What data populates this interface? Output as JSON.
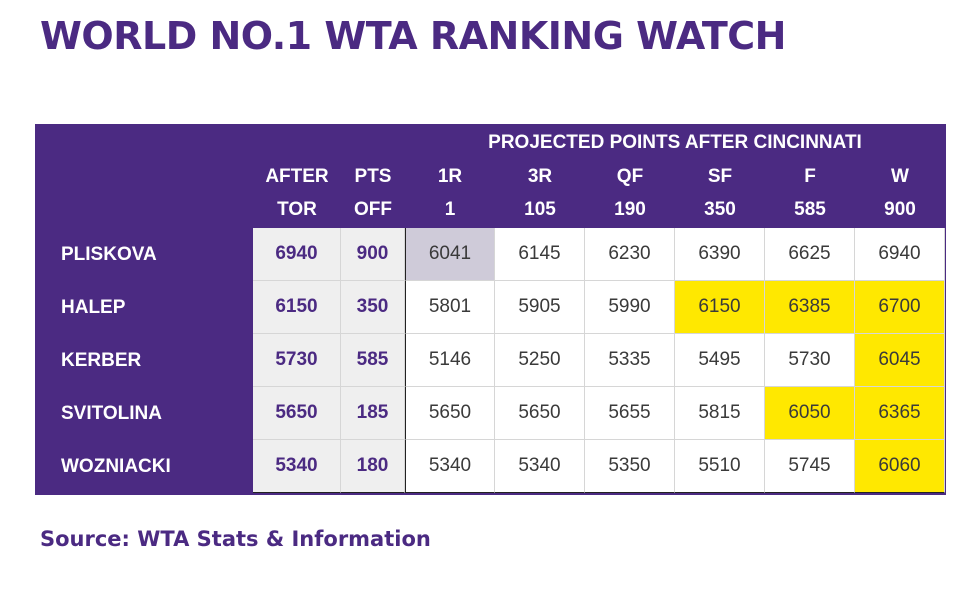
{
  "title": "WORLD NO.1 WTA RANKING WATCH",
  "source": "Source: WTA Stats & Information",
  "colors": {
    "purple": "#4b2a82",
    "highlight_yellow": "#ffe800",
    "highlight_grey": "#cfcbd9",
    "static_col_bg": "#efefef"
  },
  "table": {
    "group_header": "PROJECTED POINTS AFTER CINCINNATI",
    "columns": [
      {
        "line1": "AFTER",
        "line2": "TOR"
      },
      {
        "line1": "PTS",
        "line2": "OFF"
      },
      {
        "line1": "1R",
        "line2": "1"
      },
      {
        "line1": "3R",
        "line2": "105"
      },
      {
        "line1": "QF",
        "line2": "190"
      },
      {
        "line1": "SF",
        "line2": "350"
      },
      {
        "line1": "F",
        "line2": "585"
      },
      {
        "line1": "W",
        "line2": "900"
      }
    ],
    "rows": [
      {
        "name": "PLISKOVA",
        "values": [
          "6940",
          "900",
          "6041",
          "6145",
          "6230",
          "6390",
          "6625",
          "6940"
        ],
        "highlight": [
          "",
          "",
          "grey",
          "",
          "",
          "",
          "",
          ""
        ]
      },
      {
        "name": "HALEP",
        "values": [
          "6150",
          "350",
          "5801",
          "5905",
          "5990",
          "6150",
          "6385",
          "6700"
        ],
        "highlight": [
          "",
          "",
          "",
          "",
          "",
          "yellow",
          "yellow",
          "yellow"
        ]
      },
      {
        "name": "KERBER",
        "values": [
          "5730",
          "585",
          "5146",
          "5250",
          "5335",
          "5495",
          "5730",
          "6045"
        ],
        "highlight": [
          "",
          "",
          "",
          "",
          "",
          "",
          "",
          "yellow"
        ]
      },
      {
        "name": "SVITOLINA",
        "values": [
          "5650",
          "185",
          "5650",
          "5650",
          "5655",
          "5815",
          "6050",
          "6365"
        ],
        "highlight": [
          "",
          "",
          "",
          "",
          "",
          "",
          "yellow",
          "yellow"
        ]
      },
      {
        "name": "WOZNIACKI",
        "values": [
          "5340",
          "180",
          "5340",
          "5340",
          "5350",
          "5510",
          "5745",
          "6060"
        ],
        "highlight": [
          "",
          "",
          "",
          "",
          "",
          "",
          "",
          "yellow"
        ]
      }
    ]
  }
}
